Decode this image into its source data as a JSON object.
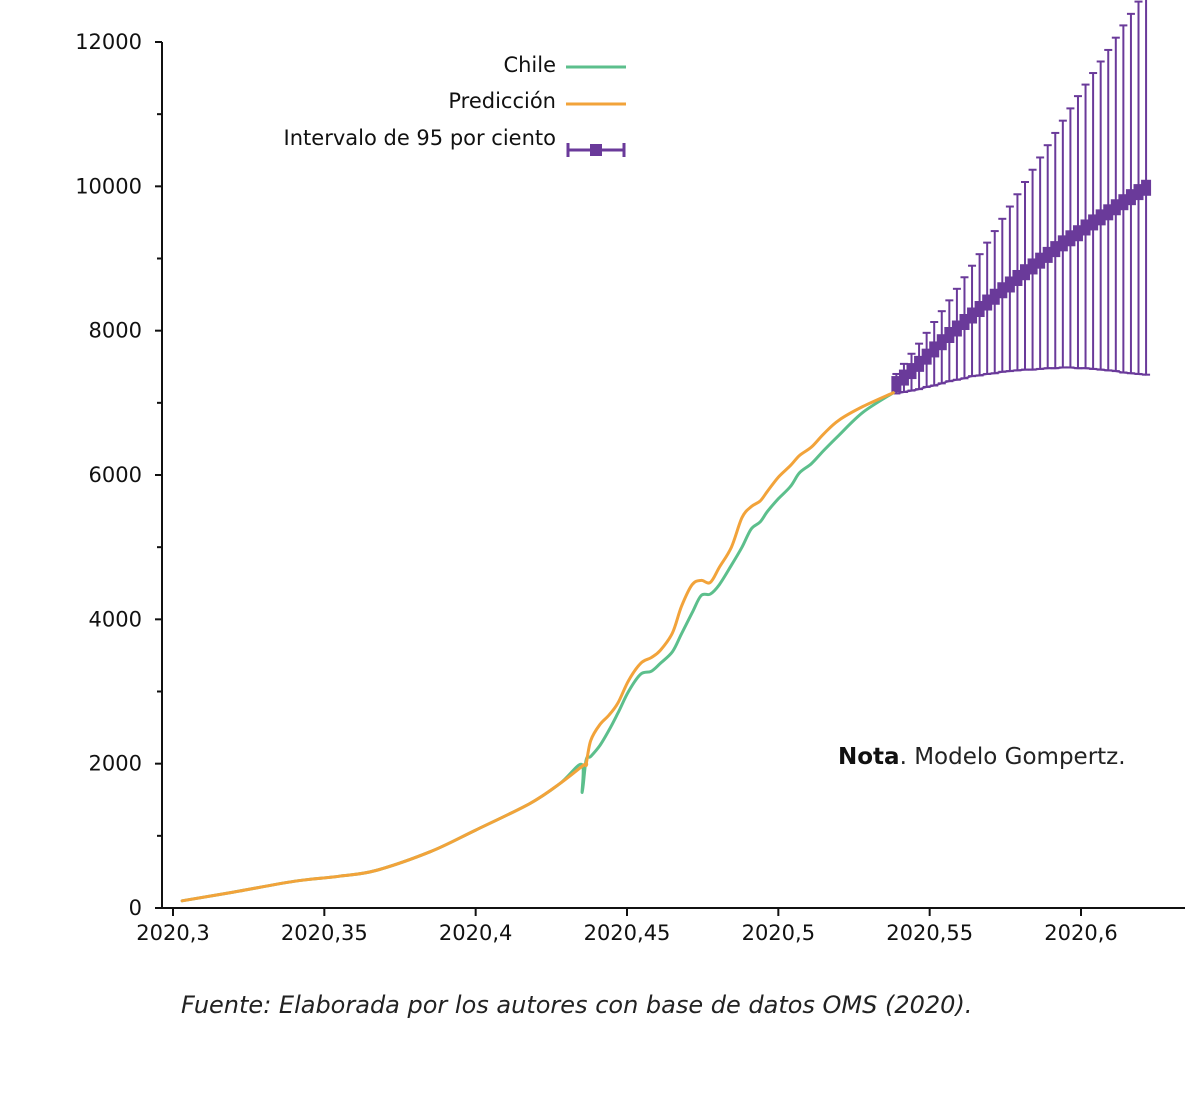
{
  "chart_data": {
    "type": "line",
    "xlim": [
      2020.297,
      2020.635
    ],
    "ylim": [
      0,
      12000
    ],
    "x_ticks": [
      2020.3,
      2020.35,
      2020.4,
      2020.45,
      2020.5,
      2020.55,
      2020.6
    ],
    "x_tick_labels": [
      "2020,3",
      "2020,35",
      "2020,4",
      "2020,45",
      "2020,5",
      "2020,55",
      "2020,6"
    ],
    "y_ticks": [
      0,
      2000,
      4000,
      6000,
      8000,
      10000,
      12000
    ],
    "y_tick_labels": [
      "0",
      "2000",
      "4000",
      "6000",
      "8000",
      "10000",
      "12000"
    ],
    "grid": false,
    "legend_position": "top-center",
    "series": [
      {
        "name": "Chile",
        "color": "#5cbf8c",
        "x": [
          2020.303,
          2020.32,
          2020.34,
          2020.355,
          2020.367,
          2020.385,
          2020.4,
          2020.418,
          2020.428,
          2020.435,
          2020.4352,
          2020.4365,
          2020.438,
          2020.441,
          2020.444,
          2020.447,
          2020.4505,
          2020.4545,
          2020.458,
          2020.461,
          2020.465,
          2020.468,
          2020.4715,
          2020.4745,
          2020.4775,
          2020.4805,
          2020.4845,
          2020.488,
          2020.491,
          2020.494,
          2020.4965,
          2020.5,
          2020.504,
          2020.507,
          2020.511,
          2020.515,
          2020.52,
          2020.528,
          2020.538
        ],
        "values": [
          100,
          220,
          370,
          440,
          520,
          780,
          1080,
          1450,
          1730,
          1990,
          1600,
          2050,
          2100,
          2250,
          2460,
          2700,
          3000,
          3240,
          3280,
          3390,
          3550,
          3800,
          4090,
          4330,
          4350,
          4480,
          4750,
          5000,
          5250,
          5350,
          5500,
          5670,
          5840,
          6030,
          6160,
          6340,
          6550,
          6870,
          7140
        ]
      },
      {
        "name": "Predicción",
        "color": "#f2a33a",
        "x": [
          2020.303,
          2020.32,
          2020.34,
          2020.355,
          2020.367,
          2020.385,
          2020.4,
          2020.418,
          2020.428,
          2020.436,
          2020.4365,
          2020.438,
          2020.441,
          2020.444,
          2020.447,
          2020.4505,
          2020.4545,
          2020.458,
          2020.461,
          2020.465,
          2020.468,
          2020.4715,
          2020.4745,
          2020.4775,
          2020.4805,
          2020.4845,
          2020.488,
          2020.491,
          2020.494,
          2020.4965,
          2020.5,
          2020.504,
          2020.507,
          2020.511,
          2020.515,
          2020.52,
          2020.528,
          2020.538
        ],
        "values": [
          100,
          220,
          370,
          440,
          520,
          780,
          1080,
          1450,
          1730,
          1990,
          1990,
          2320,
          2540,
          2670,
          2840,
          3150,
          3390,
          3470,
          3570,
          3810,
          4180,
          4480,
          4540,
          4510,
          4720,
          5000,
          5410,
          5560,
          5640,
          5780,
          5970,
          6130,
          6270,
          6390,
          6570,
          6760,
          6950,
          7140
        ]
      },
      {
        "name": "Intervalo de 95 por ciento",
        "color": "#6a3a9a",
        "type": "errorbar",
        "x": [
          2020.539,
          2020.5415,
          2020.544,
          2020.5465,
          2020.549,
          2020.5515,
          2020.554,
          2020.5565,
          2020.559,
          2020.5615,
          2020.564,
          2020.5665,
          2020.569,
          2020.5715,
          2020.574,
          2020.5765,
          2020.579,
          2020.5815,
          2020.584,
          2020.5865,
          2020.589,
          2020.5915,
          2020.594,
          2020.5965,
          2020.599,
          2020.6015,
          2020.604,
          2020.6065,
          2020.609,
          2020.6115,
          2020.614,
          2020.6165,
          2020.619,
          2020.6215
        ],
        "values": [
          7260,
          7350,
          7440,
          7540,
          7640,
          7740,
          7840,
          7940,
          8030,
          8120,
          8210,
          8300,
          8390,
          8470,
          8560,
          8640,
          8730,
          8810,
          8890,
          8970,
          9050,
          9130,
          9210,
          9280,
          9350,
          9430,
          9500,
          9570,
          9640,
          9710,
          9780,
          9850,
          9920,
          9980
        ],
        "lower": [
          7130,
          7150,
          7170,
          7190,
          7220,
          7240,
          7270,
          7300,
          7320,
          7340,
          7370,
          7380,
          7400,
          7410,
          7430,
          7440,
          7450,
          7460,
          7460,
          7470,
          7480,
          7480,
          7490,
          7490,
          7480,
          7480,
          7470,
          7460,
          7450,
          7440,
          7420,
          7410,
          7400,
          7390
        ],
        "upper": [
          7400,
          7540,
          7680,
          7820,
          7970,
          8120,
          8270,
          8420,
          8580,
          8740,
          8900,
          9060,
          9220,
          9380,
          9550,
          9720,
          9890,
          10060,
          10230,
          10400,
          10570,
          10740,
          10910,
          11080,
          11250,
          11410,
          11570,
          11730,
          11890,
          12060,
          12230,
          12390,
          12560,
          12720
        ]
      }
    ],
    "note_bold": "Nota",
    "note_text": ".  Modelo Gompertz.",
    "source": "Fuente: Elaborada por los autores con base de datos OMS (2020)."
  }
}
